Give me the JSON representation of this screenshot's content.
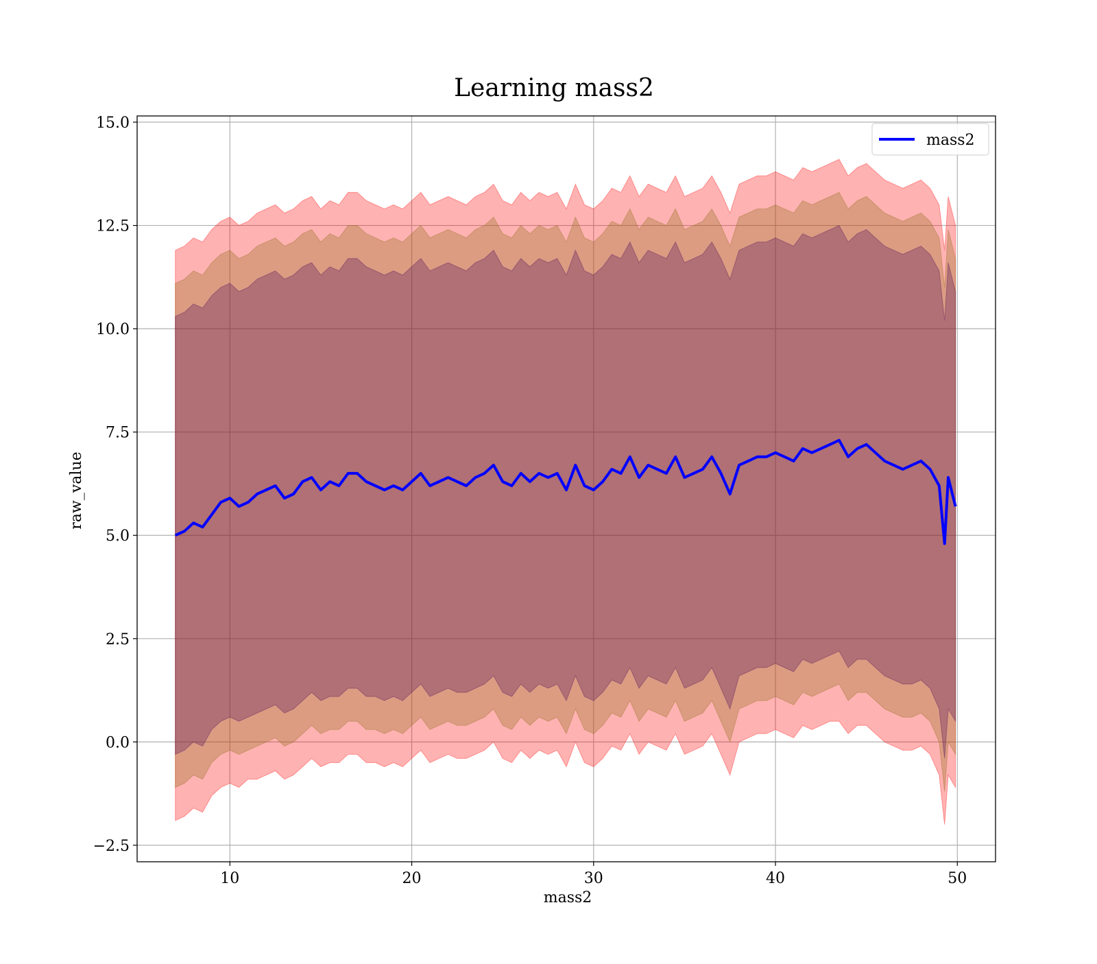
{
  "chart_data": {
    "type": "line",
    "title": "Learning mass2",
    "xlabel": "mass2",
    "ylabel": "raw_value",
    "xlim": [
      4.9,
      52.1
    ],
    "ylim": [
      -2.9,
      15.15
    ],
    "x_ticks": [
      10,
      20,
      30,
      40,
      50
    ],
    "x_tick_labels": [
      "10",
      "20",
      "30",
      "40",
      "50"
    ],
    "y_ticks": [
      -2.5,
      0.0,
      2.5,
      5.0,
      7.5,
      10.0,
      12.5,
      15.0
    ],
    "y_tick_labels": [
      "−2.5",
      "0.0",
      "2.5",
      "5.0",
      "7.5",
      "10.0",
      "12.5",
      "15.0"
    ],
    "grid": true,
    "legend": {
      "position": "top-right",
      "entries": [
        "mass2"
      ]
    },
    "colors": {
      "line": "#0000ff",
      "band_outer": "#ff0000",
      "band_middle": "#8b6914",
      "band_inner": "#4b0a5a"
    },
    "band_opacity": [
      0.3,
      0.3,
      0.3
    ],
    "x": [
      7.0,
      7.5,
      8.0,
      8.5,
      9.0,
      9.5,
      10.0,
      10.5,
      11.0,
      11.5,
      12.0,
      12.5,
      13.0,
      13.5,
      14.0,
      14.5,
      15.0,
      15.5,
      16.0,
      16.5,
      17.0,
      17.5,
      18.0,
      18.5,
      19.0,
      19.5,
      20.0,
      20.5,
      21.0,
      21.5,
      22.0,
      22.5,
      23.0,
      23.5,
      24.0,
      24.5,
      25.0,
      25.5,
      26.0,
      26.5,
      27.0,
      27.5,
      28.0,
      28.5,
      29.0,
      29.5,
      30.0,
      30.5,
      31.0,
      31.5,
      32.0,
      32.5,
      33.0,
      33.5,
      34.0,
      34.5,
      35.0,
      35.5,
      36.0,
      36.5,
      37.0,
      37.5,
      38.0,
      38.5,
      39.0,
      39.5,
      40.0,
      40.5,
      41.0,
      41.5,
      42.0,
      42.5,
      43.0,
      43.5,
      44.0,
      44.5,
      45.0,
      45.5,
      46.0,
      46.5,
      47.0,
      47.5,
      48.0,
      48.5,
      49.0,
      49.3,
      49.5,
      49.9
    ],
    "series": [
      {
        "name": "mass2",
        "values": [
          5.0,
          5.1,
          5.3,
          5.2,
          5.5,
          5.8,
          5.9,
          5.7,
          5.8,
          6.0,
          6.1,
          6.2,
          5.9,
          6.0,
          6.3,
          6.4,
          6.1,
          6.3,
          6.2,
          6.5,
          6.5,
          6.3,
          6.2,
          6.1,
          6.2,
          6.1,
          6.3,
          6.5,
          6.2,
          6.3,
          6.4,
          6.3,
          6.2,
          6.4,
          6.5,
          6.7,
          6.3,
          6.2,
          6.5,
          6.3,
          6.5,
          6.4,
          6.5,
          6.1,
          6.7,
          6.2,
          6.1,
          6.3,
          6.6,
          6.5,
          6.9,
          6.4,
          6.7,
          6.6,
          6.5,
          6.9,
          6.4,
          6.5,
          6.6,
          6.9,
          6.5,
          6.0,
          6.7,
          6.8,
          6.9,
          6.9,
          7.0,
          6.9,
          6.8,
          7.1,
          7.0,
          7.1,
          7.2,
          7.3,
          6.9,
          7.1,
          7.2,
          7.0,
          6.8,
          6.7,
          6.6,
          6.7,
          6.8,
          6.6,
          6.2,
          4.8,
          6.4,
          5.7
        ]
      }
    ],
    "bands": [
      {
        "lower": [
          -1.9,
          -1.8,
          -1.6,
          -1.7,
          -1.3,
          -1.1,
          -1.0,
          -1.1,
          -0.9,
          -0.9,
          -0.8,
          -0.7,
          -0.9,
          -0.8,
          -0.6,
          -0.4,
          -0.6,
          -0.5,
          -0.5,
          -0.3,
          -0.3,
          -0.5,
          -0.5,
          -0.6,
          -0.5,
          -0.6,
          -0.4,
          -0.2,
          -0.5,
          -0.4,
          -0.3,
          -0.4,
          -0.4,
          -0.3,
          -0.2,
          0.0,
          -0.4,
          -0.5,
          -0.2,
          -0.4,
          -0.2,
          -0.3,
          -0.2,
          -0.6,
          0.0,
          -0.5,
          -0.6,
          -0.4,
          -0.1,
          -0.2,
          0.2,
          -0.3,
          0.0,
          -0.1,
          -0.2,
          0.2,
          -0.3,
          -0.2,
          -0.1,
          0.2,
          -0.3,
          -0.8,
          0.0,
          0.1,
          0.2,
          0.2,
          0.3,
          0.2,
          0.1,
          0.4,
          0.3,
          0.4,
          0.5,
          0.5,
          0.2,
          0.4,
          0.4,
          0.2,
          0.0,
          -0.1,
          -0.2,
          -0.2,
          -0.1,
          -0.3,
          -0.8,
          -2.0,
          -0.8,
          -1.1
        ],
        "upper": [
          11.9,
          12.0,
          12.2,
          12.1,
          12.4,
          12.6,
          12.7,
          12.5,
          12.6,
          12.8,
          12.9,
          13.0,
          12.8,
          12.9,
          13.1,
          13.2,
          12.9,
          13.1,
          13.0,
          13.3,
          13.3,
          13.1,
          13.0,
          12.9,
          13.0,
          12.9,
          13.1,
          13.3,
          13.0,
          13.1,
          13.2,
          13.1,
          13.0,
          13.2,
          13.3,
          13.5,
          13.1,
          13.0,
          13.3,
          13.1,
          13.3,
          13.2,
          13.3,
          12.9,
          13.5,
          13.0,
          12.9,
          13.1,
          13.4,
          13.3,
          13.7,
          13.2,
          13.5,
          13.4,
          13.3,
          13.7,
          13.2,
          13.3,
          13.4,
          13.7,
          13.3,
          12.8,
          13.5,
          13.6,
          13.7,
          13.7,
          13.8,
          13.7,
          13.6,
          13.9,
          13.8,
          13.9,
          14.0,
          14.1,
          13.7,
          13.9,
          14.0,
          13.8,
          13.6,
          13.5,
          13.4,
          13.5,
          13.6,
          13.4,
          13.0,
          11.9,
          13.2,
          12.5
        ]
      },
      {
        "lower": [
          -1.1,
          -1.0,
          -0.8,
          -0.9,
          -0.5,
          -0.3,
          -0.2,
          -0.3,
          -0.2,
          -0.1,
          0.0,
          0.1,
          -0.1,
          0.0,
          0.2,
          0.4,
          0.2,
          0.3,
          0.3,
          0.5,
          0.5,
          0.3,
          0.3,
          0.2,
          0.3,
          0.2,
          0.4,
          0.6,
          0.3,
          0.4,
          0.5,
          0.4,
          0.4,
          0.5,
          0.6,
          0.8,
          0.4,
          0.3,
          0.6,
          0.4,
          0.6,
          0.5,
          0.6,
          0.2,
          0.8,
          0.3,
          0.2,
          0.4,
          0.7,
          0.6,
          1.0,
          0.5,
          0.8,
          0.7,
          0.6,
          1.0,
          0.5,
          0.6,
          0.7,
          1.0,
          0.5,
          0.0,
          0.8,
          0.9,
          1.0,
          1.0,
          1.1,
          1.0,
          0.9,
          1.2,
          1.1,
          1.2,
          1.3,
          1.4,
          1.0,
          1.2,
          1.2,
          1.0,
          0.8,
          0.7,
          0.6,
          0.6,
          0.7,
          0.5,
          0.0,
          -1.2,
          0.0,
          -0.3
        ],
        "upper": [
          11.1,
          11.2,
          11.4,
          11.3,
          11.6,
          11.8,
          11.9,
          11.7,
          11.8,
          12.0,
          12.1,
          12.2,
          12.0,
          12.1,
          12.3,
          12.4,
          12.1,
          12.3,
          12.2,
          12.5,
          12.5,
          12.3,
          12.2,
          12.1,
          12.2,
          12.1,
          12.3,
          12.5,
          12.2,
          12.3,
          12.4,
          12.3,
          12.2,
          12.4,
          12.5,
          12.7,
          12.3,
          12.2,
          12.5,
          12.3,
          12.5,
          12.4,
          12.5,
          12.1,
          12.7,
          12.2,
          12.1,
          12.3,
          12.6,
          12.5,
          12.9,
          12.4,
          12.7,
          12.6,
          12.5,
          12.9,
          12.4,
          12.5,
          12.6,
          12.9,
          12.5,
          12.0,
          12.7,
          12.8,
          12.9,
          12.9,
          13.0,
          12.9,
          12.8,
          13.1,
          13.0,
          13.1,
          13.2,
          13.3,
          12.9,
          13.1,
          13.2,
          13.0,
          12.8,
          12.7,
          12.6,
          12.7,
          12.8,
          12.6,
          12.2,
          11.0,
          12.4,
          11.7
        ]
      },
      {
        "lower": [
          -0.3,
          -0.2,
          0.0,
          -0.1,
          0.3,
          0.5,
          0.6,
          0.5,
          0.6,
          0.7,
          0.8,
          0.9,
          0.7,
          0.8,
          1.0,
          1.2,
          1.0,
          1.1,
          1.1,
          1.3,
          1.3,
          1.1,
          1.1,
          1.0,
          1.1,
          1.0,
          1.2,
          1.4,
          1.1,
          1.2,
          1.3,
          1.2,
          1.2,
          1.3,
          1.4,
          1.6,
          1.2,
          1.1,
          1.4,
          1.2,
          1.4,
          1.3,
          1.4,
          1.0,
          1.6,
          1.1,
          1.0,
          1.2,
          1.5,
          1.4,
          1.8,
          1.3,
          1.6,
          1.5,
          1.4,
          1.8,
          1.3,
          1.4,
          1.5,
          1.8,
          1.3,
          0.8,
          1.6,
          1.7,
          1.8,
          1.8,
          1.9,
          1.8,
          1.7,
          2.0,
          1.9,
          2.0,
          2.1,
          2.2,
          1.8,
          2.0,
          2.0,
          1.8,
          1.6,
          1.5,
          1.4,
          1.4,
          1.5,
          1.3,
          0.8,
          -0.4,
          0.8,
          0.5
        ],
        "upper": [
          10.3,
          10.4,
          10.6,
          10.5,
          10.8,
          11.0,
          11.1,
          10.9,
          11.0,
          11.2,
          11.3,
          11.4,
          11.2,
          11.3,
          11.5,
          11.6,
          11.3,
          11.5,
          11.4,
          11.7,
          11.7,
          11.5,
          11.4,
          11.3,
          11.4,
          11.3,
          11.5,
          11.7,
          11.4,
          11.5,
          11.6,
          11.5,
          11.4,
          11.6,
          11.7,
          11.9,
          11.5,
          11.4,
          11.7,
          11.5,
          11.7,
          11.6,
          11.7,
          11.3,
          11.9,
          11.4,
          11.3,
          11.5,
          11.8,
          11.7,
          12.1,
          11.6,
          11.9,
          11.8,
          11.7,
          12.1,
          11.6,
          11.7,
          11.8,
          12.1,
          11.7,
          11.2,
          11.9,
          12.0,
          12.1,
          12.1,
          12.2,
          12.1,
          12.0,
          12.3,
          12.2,
          12.3,
          12.4,
          12.5,
          12.1,
          12.3,
          12.4,
          12.2,
          12.0,
          11.9,
          11.8,
          11.9,
          12.0,
          11.8,
          11.4,
          10.2,
          11.6,
          10.9
        ]
      }
    ]
  }
}
